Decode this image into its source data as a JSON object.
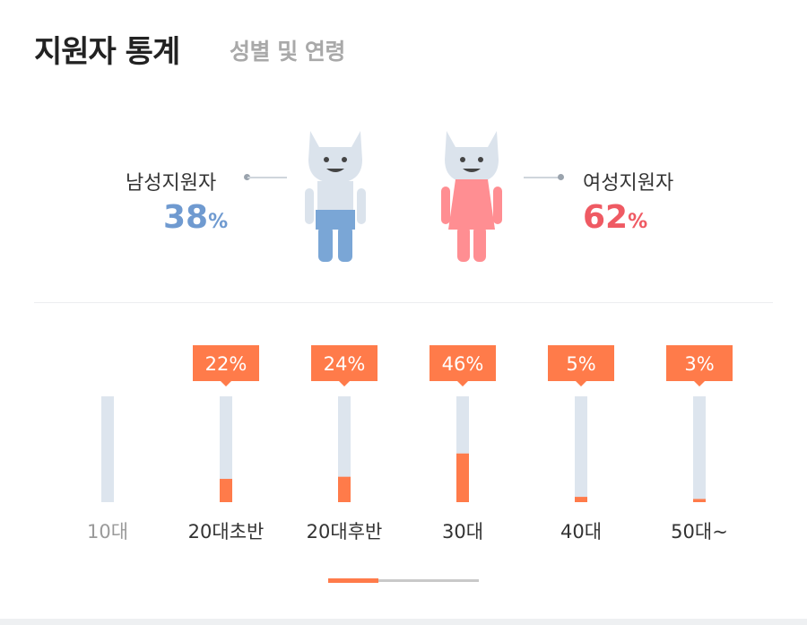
{
  "header": {
    "title": "지원자 통계",
    "subtitle": "성별 및 연령"
  },
  "gender": {
    "male": {
      "label": "남성지원자",
      "value": "38",
      "unit": "%"
    },
    "female": {
      "label": "여성지원자",
      "value": "62",
      "unit": "%"
    }
  },
  "colors": {
    "male": "#6f9ad0",
    "female": "#ef5a63",
    "accent": "#ff7b4a",
    "bar_track": "#dde5ee"
  },
  "chart_data": {
    "type": "bar",
    "categories": [
      "10대",
      "20대초반",
      "20대후반",
      "30대",
      "40대",
      "50대~"
    ],
    "values": [
      0,
      22,
      24,
      46,
      5,
      3
    ],
    "data_labels": [
      "",
      "22%",
      "24%",
      "46%",
      "5%",
      "3%"
    ],
    "ylim": [
      0,
      100
    ],
    "grid": false
  }
}
